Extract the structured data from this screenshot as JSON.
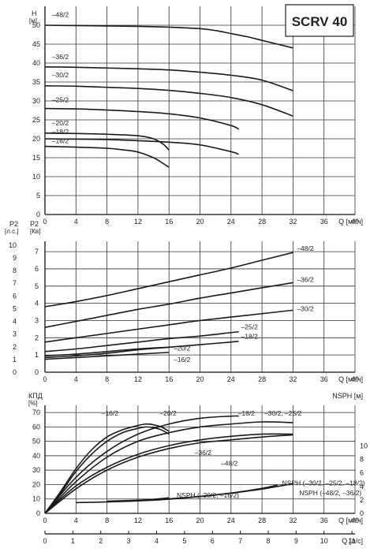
{
  "header": {
    "title": "SCRV 40"
  },
  "chart_data": [
    {
      "id": "head",
      "type": "line",
      "ylabel": "H",
      "yunit": "[м]",
      "xlabel": "Q [м³/ч]",
      "xlim": [
        0,
        40
      ],
      "ylim": [
        0,
        55
      ],
      "xticks": [
        0,
        4,
        8,
        12,
        16,
        20,
        24,
        28,
        32,
        36,
        40
      ],
      "yticks": [
        0,
        5,
        10,
        15,
        20,
        25,
        30,
        35,
        40,
        45,
        50
      ],
      "grid": true,
      "series": [
        {
          "name": "–48/2",
          "label_at": [
            0.9,
            52.2
          ],
          "points": [
            [
              0,
              50
            ],
            [
              4,
              49.9
            ],
            [
              8,
              49.8
            ],
            [
              12,
              49.7
            ],
            [
              16,
              49.5
            ],
            [
              20,
              49.1
            ],
            [
              22,
              48.6
            ],
            [
              24,
              47.8
            ],
            [
              26,
              47
            ],
            [
              28,
              46
            ],
            [
              30,
              45
            ],
            [
              32,
              44
            ]
          ]
        },
        {
          "name": "–36/2",
          "label_at": [
            0.9,
            41
          ],
          "points": [
            [
              0,
              39
            ],
            [
              4,
              38.9
            ],
            [
              8,
              38.7
            ],
            [
              12,
              38.5
            ],
            [
              16,
              38.2
            ],
            [
              20,
              37.6
            ],
            [
              24,
              36.8
            ],
            [
              28,
              35.5
            ],
            [
              32,
              32.7
            ]
          ]
        },
        {
          "name": "–30/2",
          "label_at": [
            0.9,
            36.2
          ],
          "points": [
            [
              0,
              34
            ],
            [
              4,
              33.9
            ],
            [
              8,
              33.6
            ],
            [
              12,
              33.3
            ],
            [
              16,
              32.8
            ],
            [
              20,
              32
            ],
            [
              24,
              30.9
            ],
            [
              28,
              29
            ],
            [
              32,
              26
            ]
          ]
        },
        {
          "name": "–25/2",
          "label_at": [
            0.9,
            29.7
          ],
          "points": [
            [
              0,
              28
            ],
            [
              4,
              27.9
            ],
            [
              8,
              27.6
            ],
            [
              12,
              27.2
            ],
            [
              16,
              26.6
            ],
            [
              20,
              25.5
            ],
            [
              24,
              23.5
            ],
            [
              25,
              22.5
            ]
          ]
        },
        {
          "name": "–20/2",
          "label_at": [
            0.9,
            23.5
          ],
          "points": [
            [
              0,
              21.5
            ],
            [
              4,
              21.4
            ],
            [
              8,
              21.2
            ],
            [
              12,
              20.8
            ],
            [
              14,
              20
            ],
            [
              15.3,
              18.5
            ],
            [
              16,
              17
            ]
          ]
        },
        {
          "name": "–18/2",
          "label_at": [
            0.9,
            21.2
          ],
          "points": [
            [
              0,
              20
            ],
            [
              4,
              19.9
            ],
            [
              8,
              19.8
            ],
            [
              12,
              19.5
            ],
            [
              16,
              19.1
            ],
            [
              20,
              18.4
            ],
            [
              24,
              16.6
            ],
            [
              25,
              15.9
            ]
          ]
        },
        {
          "name": "–16/2",
          "label_at": [
            0.9,
            18.9
          ],
          "points": [
            [
              0,
              18
            ],
            [
              4,
              17.8
            ],
            [
              8,
              17.5
            ],
            [
              10,
              17.1
            ],
            [
              12,
              16.5
            ],
            [
              14,
              15
            ],
            [
              15,
              13.8
            ],
            [
              16,
              12.5
            ]
          ]
        }
      ]
    },
    {
      "id": "power",
      "type": "line",
      "ylabel": "P2",
      "yunit": "[Кв]",
      "ylabel2": "P2",
      "yunit2": "[л.с.]",
      "xlabel": "Q [м³/ч]",
      "xlim": [
        0,
        40
      ],
      "ylim": [
        0,
        7.6
      ],
      "y2lim": [
        0,
        10.3
      ],
      "xticks": [
        0,
        4,
        8,
        12,
        16,
        20,
        24,
        28,
        32,
        36,
        40
      ],
      "yticks": [
        0,
        1,
        2,
        3,
        4,
        5,
        6,
        7
      ],
      "y2ticks": [
        0,
        1,
        2,
        3,
        4,
        5,
        6,
        7,
        8,
        9,
        10
      ],
      "grid": true,
      "series": [
        {
          "name": "–48/2",
          "label_at": [
            32.5,
            7.05
          ],
          "points": [
            [
              0,
              3.8
            ],
            [
              4,
              4.1
            ],
            [
              8,
              4.45
            ],
            [
              12,
              4.85
            ],
            [
              16,
              5.25
            ],
            [
              20,
              5.65
            ],
            [
              24,
              6.05
            ],
            [
              28,
              6.5
            ],
            [
              32,
              6.95
            ]
          ]
        },
        {
          "name": "–36/2",
          "label_at": [
            32.5,
            5.25
          ],
          "points": [
            [
              0,
              2.6
            ],
            [
              4,
              2.95
            ],
            [
              8,
              3.3
            ],
            [
              12,
              3.65
            ],
            [
              16,
              3.95
            ],
            [
              20,
              4.3
            ],
            [
              24,
              4.6
            ],
            [
              28,
              4.9
            ],
            [
              32,
              5.2
            ]
          ]
        },
        {
          "name": "–30/2",
          "label_at": [
            32.5,
            3.55
          ],
          "points": [
            [
              0,
              1.75
            ],
            [
              4,
              2.0
            ],
            [
              8,
              2.25
            ],
            [
              12,
              2.5
            ],
            [
              16,
              2.75
            ],
            [
              20,
              3.0
            ],
            [
              24,
              3.2
            ],
            [
              28,
              3.4
            ],
            [
              32,
              3.6
            ]
          ]
        },
        {
          "name": "–25/2",
          "label_at": [
            25.3,
            2.5
          ],
          "points": [
            [
              0,
              1.2
            ],
            [
              4,
              1.35
            ],
            [
              8,
              1.55
            ],
            [
              12,
              1.75
            ],
            [
              16,
              1.95
            ],
            [
              20,
              2.1
            ],
            [
              24,
              2.3
            ],
            [
              25,
              2.35
            ]
          ]
        },
        {
          "name": "–20/2",
          "label_at": [
            16.6,
            1.25
          ],
          "points": [
            [
              0,
              0.95
            ],
            [
              4,
              1.05
            ],
            [
              8,
              1.2
            ],
            [
              12,
              1.35
            ],
            [
              16,
              1.45
            ]
          ]
        },
        {
          "name": "–18/2",
          "label_at": [
            25.3,
            1.95
          ],
          "points": [
            [
              0,
              0.85
            ],
            [
              4,
              0.95
            ],
            [
              8,
              1.1
            ],
            [
              12,
              1.3
            ],
            [
              16,
              1.45
            ],
            [
              20,
              1.6
            ],
            [
              24,
              1.75
            ],
            [
              25,
              1.8
            ]
          ]
        },
        {
          "name": "–16/2",
          "label_at": [
            16.6,
            0.6
          ],
          "points": [
            [
              0,
              0.75
            ],
            [
              4,
              0.85
            ],
            [
              8,
              0.95
            ],
            [
              12,
              1.05
            ],
            [
              16,
              1.15
            ]
          ]
        }
      ]
    },
    {
      "id": "efficiency-npsh",
      "type": "line",
      "ylabel": "КПД",
      "yunit": "[%]",
      "ylabel2": "NSPH [м]",
      "xlabel": "Q [м³/ч]",
      "xlabel2": "Q [л/с]",
      "xlim": [
        0,
        40
      ],
      "ylim": [
        0,
        75
      ],
      "y2lim": [
        0,
        16
      ],
      "x2lim": [
        0,
        11.11
      ],
      "xticks": [
        0,
        4,
        8,
        12,
        16,
        20,
        24,
        28,
        32,
        36,
        40
      ],
      "x2ticks": [
        0,
        1,
        2,
        3,
        4,
        5,
        6,
        7,
        8,
        9,
        10,
        11
      ],
      "yticks": [
        0,
        10,
        20,
        30,
        40,
        50,
        60,
        70
      ],
      "y2ticks": [
        0,
        2,
        4,
        6,
        8,
        10
      ],
      "grid": true,
      "series": [
        {
          "name": "–16/2",
          "label_at": [
            7.3,
            68
          ],
          "points": [
            [
              0,
              0
            ],
            [
              2,
              15
            ],
            [
              4,
              31
            ],
            [
              6,
              44
            ],
            [
              8,
              53
            ],
            [
              10,
              58
            ],
            [
              12,
              61
            ],
            [
              13,
              62
            ],
            [
              14,
              61.5
            ],
            [
              15,
              60
            ],
            [
              16,
              57
            ]
          ]
        },
        {
          "name": "–20/2",
          "label_at": [
            14.8,
            68
          ],
          "points": [
            [
              0,
              0
            ],
            [
              2,
              14
            ],
            [
              4,
              29
            ],
            [
              6,
              41
            ],
            [
              8,
              50
            ],
            [
              10,
              56
            ],
            [
              12,
              59
            ],
            [
              13,
              60
            ],
            [
              14,
              59.5
            ],
            [
              15,
              58
            ],
            [
              16,
              55
            ]
          ]
        },
        {
          "name": "–18/2",
          "label_at": [
            24.9,
            68
          ],
          "points": [
            [
              0,
              0
            ],
            [
              4,
              25
            ],
            [
              8,
              43
            ],
            [
              12,
              55
            ],
            [
              16,
              62
            ],
            [
              20,
              66
            ],
            [
              24,
              67.5
            ],
            [
              25,
              67.5
            ]
          ]
        },
        {
          "name": "–30/2, –25/2",
          "label_at": [
            28.3,
            68
          ],
          "points": [
            [
              0,
              0
            ],
            [
              4,
              22
            ],
            [
              8,
              39
            ],
            [
              12,
              50
            ],
            [
              16,
              56
            ],
            [
              20,
              60
            ],
            [
              24,
              62
            ],
            [
              28,
              63.5
            ],
            [
              32,
              63
            ]
          ]
        },
        {
          "name": "–48/2",
          "label_at": [
            22.7,
            33
          ],
          "points": [
            [
              0,
              0
            ],
            [
              4,
              17
            ],
            [
              8,
              30
            ],
            [
              12,
              39
            ],
            [
              16,
              45
            ],
            [
              20,
              49
            ],
            [
              24,
              51
            ],
            [
              28,
              53
            ],
            [
              32,
              54.5
            ]
          ]
        },
        {
          "name": "–36/2",
          "label_at": [
            19.3,
            40.5
          ],
          "points": [
            [
              0,
              0
            ],
            [
              4,
              19
            ],
            [
              8,
              32
            ],
            [
              12,
              41
            ],
            [
              16,
              47
            ],
            [
              20,
              51
            ],
            [
              24,
              53.5
            ],
            [
              28,
              55
            ],
            [
              32,
              55
            ]
          ]
        },
        {
          "name": "NSPH (–20/2, –16/2)",
          "axis": "right",
          "label_at": [
            17.0,
            11
          ],
          "points": [
            [
              4,
              1.6
            ],
            [
              8,
              1.7
            ],
            [
              12,
              1.9
            ],
            [
              16,
              2.3
            ]
          ]
        },
        {
          "name": "NSPH (–30/2, –25/2, –18/2)",
          "axis": "right",
          "label_at": [
            30.6,
            19.5
          ],
          "points": [
            [
              8,
              1.7
            ],
            [
              12,
              1.85
            ],
            [
              16,
              2.1
            ],
            [
              20,
              2.5
            ],
            [
              24,
              3.0
            ],
            [
              28,
              3.7
            ],
            [
              30,
              4.2
            ]
          ]
        },
        {
          "name": "NSPH (–48/2, –36/2)",
          "axis": "right",
          "label_at": [
            32.8,
            12.5
          ],
          "points": [
            [
              8,
              1.8
            ],
            [
              12,
              1.95
            ],
            [
              16,
              2.15
            ],
            [
              20,
              2.5
            ],
            [
              24,
              3.0
            ],
            [
              28,
              3.6
            ],
            [
              32,
              4.4
            ]
          ]
        }
      ]
    }
  ]
}
